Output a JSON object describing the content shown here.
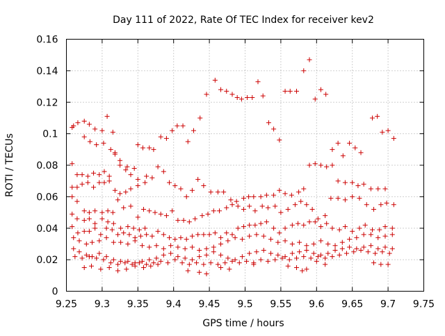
{
  "chart_data": {
    "type": "scatter",
    "title": "Day 111 of 2022, Rate Of TEC Index for receiver kev2",
    "xlabel": "GPS time / hours",
    "ylabel": "ROTI / TECUs",
    "xlim": [
      9.25,
      9.75
    ],
    "ylim": [
      0,
      0.16
    ],
    "x_ticks": [
      "9.25",
      "9.3",
      "9.35",
      "9.4",
      "9.45",
      "9.5",
      "9.55",
      "9.6",
      "9.65",
      "9.7",
      "9.75"
    ],
    "y_ticks": [
      "0",
      "0.02",
      "0.04",
      "0.06",
      "0.08",
      "0.1",
      "0.12",
      "0.14",
      "0.16"
    ],
    "grid": true,
    "marker": "plus",
    "marker_color": "#cc0000",
    "points": [
      [
        9.258,
        0.104
      ],
      [
        9.26,
        0.105
      ],
      [
        9.266,
        0.107
      ],
      [
        9.275,
        0.108
      ],
      [
        9.282,
        0.106
      ],
      [
        9.29,
        0.103
      ],
      [
        9.3,
        0.102
      ],
      [
        9.307,
        0.111
      ],
      [
        9.315,
        0.101
      ],
      [
        9.275,
        0.098
      ],
      [
        9.283,
        0.095
      ],
      [
        9.292,
        0.093
      ],
      [
        9.302,
        0.094
      ],
      [
        9.312,
        0.09
      ],
      [
        9.318,
        0.088
      ],
      [
        9.325,
        0.083
      ],
      [
        9.335,
        0.079
      ],
      [
        9.345,
        0.078
      ],
      [
        9.35,
        0.093
      ],
      [
        9.357,
        0.091
      ],
      [
        9.366,
        0.091
      ],
      [
        9.372,
        0.09
      ],
      [
        9.382,
        0.098
      ],
      [
        9.39,
        0.097
      ],
      [
        9.398,
        0.102
      ],
      [
        9.405,
        0.105
      ],
      [
        9.413,
        0.105
      ],
      [
        9.42,
        0.095
      ],
      [
        9.428,
        0.102
      ],
      [
        9.437,
        0.11
      ],
      [
        9.446,
        0.125
      ],
      [
        9.458,
        0.134
      ],
      [
        9.466,
        0.128
      ],
      [
        9.474,
        0.127
      ],
      [
        9.482,
        0.125
      ],
      [
        9.489,
        0.123
      ],
      [
        9.495,
        0.122
      ],
      [
        9.503,
        0.123
      ],
      [
        9.51,
        0.123
      ],
      [
        9.518,
        0.133
      ],
      [
        9.525,
        0.124
      ],
      [
        9.533,
        0.107
      ],
      [
        9.54,
        0.103
      ],
      [
        9.548,
        0.096
      ],
      [
        9.556,
        0.127
      ],
      [
        9.563,
        0.127
      ],
      [
        9.572,
        0.127
      ],
      [
        9.582,
        0.14
      ],
      [
        9.59,
        0.147
      ],
      [
        9.598,
        0.122
      ],
      [
        9.606,
        0.128
      ],
      [
        9.613,
        0.125
      ],
      [
        9.622,
        0.09
      ],
      [
        9.63,
        0.094
      ],
      [
        9.637,
        0.086
      ],
      [
        9.646,
        0.094
      ],
      [
        9.654,
        0.091
      ],
      [
        9.662,
        0.088
      ],
      [
        9.678,
        0.11
      ],
      [
        9.685,
        0.111
      ],
      [
        9.692,
        0.101
      ],
      [
        9.7,
        0.102
      ],
      [
        9.708,
        0.097
      ],
      [
        9.258,
        0.081
      ],
      [
        9.265,
        0.074
      ],
      [
        9.272,
        0.074
      ],
      [
        9.28,
        0.073
      ],
      [
        9.288,
        0.075
      ],
      [
        9.296,
        0.074
      ],
      [
        9.303,
        0.076
      ],
      [
        9.31,
        0.073
      ],
      [
        9.318,
        0.087
      ],
      [
        9.325,
        0.08
      ],
      [
        9.333,
        0.077
      ],
      [
        9.34,
        0.074
      ],
      [
        9.35,
        0.071
      ],
      [
        9.362,
        0.073
      ],
      [
        9.37,
        0.072
      ],
      [
        9.378,
        0.079
      ],
      [
        9.386,
        0.076
      ],
      [
        9.394,
        0.069
      ],
      [
        9.402,
        0.067
      ],
      [
        9.41,
        0.065
      ],
      [
        9.418,
        0.06
      ],
      [
        9.426,
        0.064
      ],
      [
        9.434,
        0.071
      ],
      [
        9.442,
        0.067
      ],
      [
        9.452,
        0.063
      ],
      [
        9.462,
        0.063
      ],
      [
        9.47,
        0.063
      ],
      [
        9.48,
        0.058
      ],
      [
        9.488,
        0.057
      ],
      [
        9.498,
        0.059
      ],
      [
        9.505,
        0.06
      ],
      [
        9.512,
        0.06
      ],
      [
        9.522,
        0.06
      ],
      [
        9.53,
        0.061
      ],
      [
        9.54,
        0.061
      ],
      [
        9.548,
        0.064
      ],
      [
        9.556,
        0.062
      ],
      [
        9.565,
        0.061
      ],
      [
        9.575,
        0.063
      ],
      [
        9.582,
        0.065
      ],
      [
        9.59,
        0.08
      ],
      [
        9.598,
        0.081
      ],
      [
        9.606,
        0.08
      ],
      [
        9.614,
        0.079
      ],
      [
        9.622,
        0.08
      ],
      [
        9.63,
        0.07
      ],
      [
        9.64,
        0.069
      ],
      [
        9.65,
        0.069
      ],
      [
        9.658,
        0.067
      ],
      [
        9.666,
        0.068
      ],
      [
        9.676,
        0.065
      ],
      [
        9.686,
        0.065
      ],
      [
        9.696,
        0.065
      ],
      [
        9.258,
        0.066
      ],
      [
        9.265,
        0.066
      ],
      [
        9.272,
        0.068
      ],
      [
        9.28,
        0.069
      ],
      [
        9.288,
        0.066
      ],
      [
        9.296,
        0.069
      ],
      [
        9.303,
        0.069
      ],
      [
        9.31,
        0.07
      ],
      [
        9.318,
        0.064
      ],
      [
        9.325,
        0.062
      ],
      [
        9.333,
        0.063
      ],
      [
        9.34,
        0.065
      ],
      [
        9.35,
        0.067
      ],
      [
        9.36,
        0.069
      ],
      [
        9.258,
        0.06
      ],
      [
        9.265,
        0.057
      ],
      [
        9.275,
        0.051
      ],
      [
        9.282,
        0.05
      ],
      [
        9.29,
        0.051
      ],
      [
        9.3,
        0.05
      ],
      [
        9.308,
        0.051
      ],
      [
        9.315,
        0.05
      ],
      [
        9.322,
        0.058
      ],
      [
        9.33,
        0.053
      ],
      [
        9.34,
        0.054
      ],
      [
        9.35,
        0.047
      ],
      [
        9.358,
        0.052
      ],
      [
        9.366,
        0.051
      ],
      [
        9.374,
        0.05
      ],
      [
        9.382,
        0.049
      ],
      [
        9.39,
        0.048
      ],
      [
        9.398,
        0.051
      ],
      [
        9.406,
        0.045
      ],
      [
        9.414,
        0.045
      ],
      [
        9.422,
        0.044
      ],
      [
        9.43,
        0.046
      ],
      [
        9.44,
        0.048
      ],
      [
        9.448,
        0.049
      ],
      [
        9.456,
        0.051
      ],
      [
        9.464,
        0.051
      ],
      [
        9.474,
        0.053
      ],
      [
        9.482,
        0.055
      ],
      [
        9.49,
        0.054
      ],
      [
        9.498,
        0.052
      ],
      [
        9.506,
        0.054
      ],
      [
        9.514,
        0.051
      ],
      [
        9.524,
        0.054
      ],
      [
        9.532,
        0.053
      ],
      [
        9.542,
        0.054
      ],
      [
        9.55,
        0.05
      ],
      [
        9.56,
        0.052
      ],
      [
        9.57,
        0.055
      ],
      [
        9.578,
        0.057
      ],
      [
        9.586,
        0.055
      ],
      [
        9.594,
        0.052
      ],
      [
        9.602,
        0.046
      ],
      [
        9.612,
        0.048
      ],
      [
        9.62,
        0.059
      ],
      [
        9.63,
        0.059
      ],
      [
        9.64,
        0.058
      ],
      [
        9.65,
        0.06
      ],
      [
        9.66,
        0.059
      ],
      [
        9.67,
        0.055
      ],
      [
        9.68,
        0.052
      ],
      [
        9.69,
        0.055
      ],
      [
        9.698,
        0.056
      ],
      [
        9.708,
        0.055
      ],
      [
        9.258,
        0.049
      ],
      [
        9.265,
        0.046
      ],
      [
        9.275,
        0.045
      ],
      [
        9.282,
        0.046
      ],
      [
        9.29,
        0.043
      ],
      [
        9.3,
        0.046
      ],
      [
        9.308,
        0.044
      ],
      [
        9.316,
        0.043
      ],
      [
        9.326,
        0.04
      ],
      [
        9.336,
        0.041
      ],
      [
        9.344,
        0.04
      ],
      [
        9.352,
        0.039
      ],
      [
        9.36,
        0.04
      ],
      [
        9.258,
        0.041
      ],
      [
        9.266,
        0.037
      ],
      [
        9.275,
        0.038
      ],
      [
        9.282,
        0.038
      ],
      [
        9.29,
        0.04
      ],
      [
        9.298,
        0.036
      ],
      [
        9.306,
        0.04
      ],
      [
        9.314,
        0.039
      ],
      [
        9.322,
        0.036
      ],
      [
        9.33,
        0.037
      ],
      [
        9.338,
        0.036
      ],
      [
        9.346,
        0.034
      ],
      [
        9.354,
        0.035
      ],
      [
        9.362,
        0.036
      ],
      [
        9.37,
        0.035
      ],
      [
        9.378,
        0.038
      ],
      [
        9.386,
        0.036
      ],
      [
        9.394,
        0.034
      ],
      [
        9.402,
        0.033
      ],
      [
        9.41,
        0.034
      ],
      [
        9.418,
        0.033
      ],
      [
        9.426,
        0.035
      ],
      [
        9.434,
        0.036
      ],
      [
        9.442,
        0.036
      ],
      [
        9.45,
        0.036
      ],
      [
        9.458,
        0.037
      ],
      [
        9.466,
        0.034
      ],
      [
        9.474,
        0.037
      ],
      [
        9.482,
        0.036
      ],
      [
        9.49,
        0.04
      ],
      [
        9.498,
        0.041
      ],
      [
        9.506,
        0.042
      ],
      [
        9.514,
        0.042
      ],
      [
        9.522,
        0.043
      ],
      [
        9.53,
        0.044
      ],
      [
        9.54,
        0.04
      ],
      [
        9.548,
        0.037
      ],
      [
        9.556,
        0.04
      ],
      [
        9.566,
        0.042
      ],
      [
        9.574,
        0.043
      ],
      [
        9.582,
        0.042
      ],
      [
        9.59,
        0.044
      ],
      [
        9.598,
        0.044
      ],
      [
        9.606,
        0.041
      ],
      [
        9.614,
        0.043
      ],
      [
        9.622,
        0.04
      ],
      [
        9.632,
        0.039
      ],
      [
        9.64,
        0.041
      ],
      [
        9.65,
        0.038
      ],
      [
        9.66,
        0.04
      ],
      [
        9.668,
        0.042
      ],
      [
        9.678,
        0.039
      ],
      [
        9.688,
        0.039
      ],
      [
        9.696,
        0.041
      ],
      [
        9.706,
        0.04
      ],
      [
        9.26,
        0.034
      ],
      [
        9.268,
        0.032
      ],
      [
        9.278,
        0.03
      ],
      [
        9.286,
        0.031
      ],
      [
        9.296,
        0.032
      ],
      [
        9.306,
        0.034
      ],
      [
        9.316,
        0.031
      ],
      [
        9.326,
        0.031
      ],
      [
        9.336,
        0.03
      ],
      [
        9.346,
        0.032
      ],
      [
        9.356,
        0.029
      ],
      [
        9.366,
        0.028
      ],
      [
        9.376,
        0.029
      ],
      [
        9.386,
        0.027
      ],
      [
        9.396,
        0.029
      ],
      [
        9.406,
        0.028
      ],
      [
        9.416,
        0.027
      ],
      [
        9.426,
        0.028
      ],
      [
        9.436,
        0.026
      ],
      [
        9.446,
        0.027
      ],
      [
        9.456,
        0.028
      ],
      [
        9.466,
        0.03
      ],
      [
        9.476,
        0.032
      ],
      [
        9.486,
        0.034
      ],
      [
        9.496,
        0.033
      ],
      [
        9.506,
        0.035
      ],
      [
        9.516,
        0.036
      ],
      [
        9.526,
        0.035
      ],
      [
        9.536,
        0.033
      ],
      [
        9.546,
        0.031
      ],
      [
        9.556,
        0.032
      ],
      [
        9.566,
        0.03
      ],
      [
        9.576,
        0.031
      ],
      [
        9.586,
        0.029
      ],
      [
        9.596,
        0.03
      ],
      [
        9.606,
        0.032
      ],
      [
        9.616,
        0.03
      ],
      [
        9.626,
        0.029
      ],
      [
        9.636,
        0.031
      ],
      [
        9.646,
        0.033
      ],
      [
        9.656,
        0.034
      ],
      [
        9.666,
        0.036
      ],
      [
        9.676,
        0.036
      ],
      [
        9.686,
        0.034
      ],
      [
        9.696,
        0.035
      ],
      [
        9.706,
        0.036
      ],
      [
        9.26,
        0.027
      ],
      [
        9.268,
        0.025
      ],
      [
        9.278,
        0.023
      ],
      [
        9.286,
        0.022
      ],
      [
        9.296,
        0.024
      ],
      [
        9.306,
        0.022
      ],
      [
        9.316,
        0.02
      ],
      [
        9.326,
        0.019
      ],
      [
        9.336,
        0.019
      ],
      [
        9.346,
        0.018
      ],
      [
        9.356,
        0.019
      ],
      [
        9.366,
        0.02
      ],
      [
        9.376,
        0.021
      ],
      [
        9.386,
        0.023
      ],
      [
        9.396,
        0.024
      ],
      [
        9.406,
        0.022
      ],
      [
        9.416,
        0.021
      ],
      [
        9.426,
        0.02
      ],
      [
        9.436,
        0.022
      ],
      [
        9.446,
        0.023
      ],
      [
        9.456,
        0.025
      ],
      [
        9.466,
        0.023
      ],
      [
        9.476,
        0.021
      ],
      [
        9.486,
        0.02
      ],
      [
        9.496,
        0.022
      ],
      [
        9.506,
        0.024
      ],
      [
        9.516,
        0.025
      ],
      [
        9.526,
        0.026
      ],
      [
        9.536,
        0.024
      ],
      [
        9.546,
        0.023
      ],
      [
        9.556,
        0.022
      ],
      [
        9.566,
        0.024
      ],
      [
        9.576,
        0.025
      ],
      [
        9.586,
        0.026
      ],
      [
        9.596,
        0.024
      ],
      [
        9.606,
        0.023
      ],
      [
        9.616,
        0.024
      ],
      [
        9.626,
        0.026
      ],
      [
        9.636,
        0.027
      ],
      [
        9.646,
        0.028
      ],
      [
        9.656,
        0.027
      ],
      [
        9.666,
        0.028
      ],
      [
        9.676,
        0.029
      ],
      [
        9.686,
        0.027
      ],
      [
        9.696,
        0.028
      ],
      [
        9.706,
        0.027
      ],
      [
        9.262,
        0.022
      ],
      [
        9.272,
        0.021
      ],
      [
        9.282,
        0.022
      ],
      [
        9.292,
        0.021
      ],
      [
        9.302,
        0.02
      ],
      [
        9.312,
        0.018
      ],
      [
        9.322,
        0.017
      ],
      [
        9.332,
        0.018
      ],
      [
        9.342,
        0.017
      ],
      [
        9.352,
        0.018
      ],
      [
        9.362,
        0.017
      ],
      [
        9.372,
        0.018
      ],
      [
        9.382,
        0.019
      ],
      [
        9.392,
        0.018
      ],
      [
        9.402,
        0.02
      ],
      [
        9.412,
        0.018
      ],
      [
        9.422,
        0.017
      ],
      [
        9.432,
        0.018
      ],
      [
        9.442,
        0.017
      ],
      [
        9.452,
        0.018
      ],
      [
        9.462,
        0.017
      ],
      [
        9.472,
        0.018
      ],
      [
        9.482,
        0.019
      ],
      [
        9.492,
        0.018
      ],
      [
        9.502,
        0.019
      ],
      [
        9.512,
        0.018
      ],
      [
        9.522,
        0.02
      ],
      [
        9.532,
        0.019
      ],
      [
        9.542,
        0.02
      ],
      [
        9.552,
        0.021
      ],
      [
        9.562,
        0.02
      ],
      [
        9.572,
        0.021
      ],
      [
        9.582,
        0.022
      ],
      [
        9.592,
        0.021
      ],
      [
        9.602,
        0.022
      ],
      [
        9.612,
        0.021
      ],
      [
        9.622,
        0.022
      ],
      [
        9.632,
        0.023
      ],
      [
        9.642,
        0.024
      ],
      [
        9.652,
        0.025
      ],
      [
        9.662,
        0.026
      ],
      [
        9.672,
        0.025
      ],
      [
        9.682,
        0.024
      ],
      [
        9.692,
        0.025
      ],
      [
        9.702,
        0.024
      ],
      [
        9.275,
        0.015
      ],
      [
        9.285,
        0.016
      ],
      [
        9.298,
        0.014
      ],
      [
        9.31,
        0.015
      ],
      [
        9.322,
        0.013
      ],
      [
        9.334,
        0.014
      ],
      [
        9.346,
        0.016
      ],
      [
        9.358,
        0.015
      ],
      [
        9.368,
        0.016
      ],
      [
        9.378,
        0.017
      ],
      [
        9.42,
        0.013
      ],
      [
        9.436,
        0.012
      ],
      [
        9.446,
        0.011
      ],
      [
        9.466,
        0.015
      ],
      [
        9.478,
        0.014
      ],
      [
        9.512,
        0.017
      ],
      [
        9.56,
        0.016
      ],
      [
        9.572,
        0.015
      ],
      [
        9.58,
        0.013
      ],
      [
        9.586,
        0.014
      ],
      [
        9.6,
        0.019
      ],
      [
        9.612,
        0.017
      ],
      [
        9.68,
        0.018
      ],
      [
        9.69,
        0.017
      ],
      [
        9.7,
        0.017
      ]
    ]
  }
}
